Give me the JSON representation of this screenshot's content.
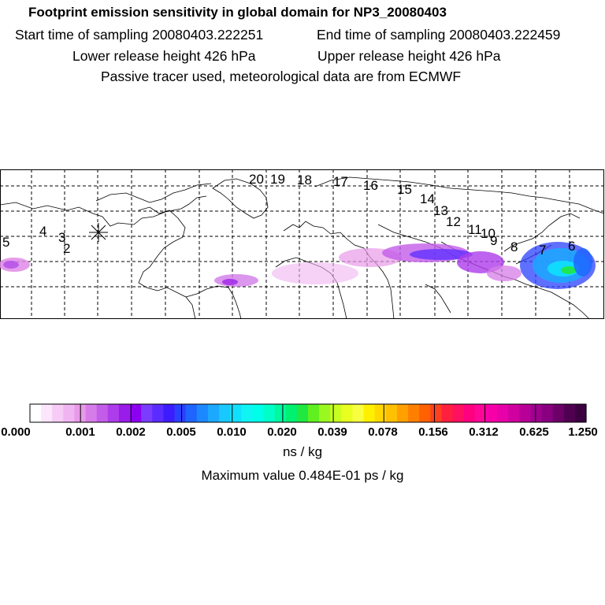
{
  "header": {
    "title": "Footprint emission sensitivity in global domain for NP3_20080403",
    "start": "Start time of sampling 20080403.222251",
    "end": "End time of sampling 20080403.222459",
    "lower": "Lower release height  426 hPa",
    "upper": "Upper release height  426 hPa",
    "note": "Passive tracer used, meteorological data are from ECMWF"
  },
  "map": {
    "track_labels": [
      "20",
      "19",
      "18",
      "17",
      "16",
      "15",
      "14",
      "13",
      "12",
      "11",
      "10",
      "9",
      "8",
      "7",
      "6",
      "5",
      "4",
      "3",
      "2"
    ],
    "release_marker": "star-icon"
  },
  "colorbar": {
    "ticks": [
      "0.000",
      "0.001",
      "0.002",
      "0.005",
      "0.010",
      "0.020",
      "0.039",
      "0.078",
      "0.156",
      "0.312",
      "0.625",
      "1.250"
    ],
    "colors": [
      "#ffffff",
      "#fbe6fb",
      "#f6ccf6",
      "#f0b4f2",
      "#e89ae8",
      "#d67ce8",
      "#c35ce8",
      "#ad3ceb",
      "#9a1ce8",
      "#8c00f0",
      "#7a3cff",
      "#5a2cff",
      "#3c1cff",
      "#2a40ff",
      "#1e64ff",
      "#1c88ff",
      "#1ca8ff",
      "#18c8ff",
      "#10e0ff",
      "#10f4f4",
      "#00ffe8",
      "#00ffc8",
      "#00f8a0",
      "#00f070",
      "#20e840",
      "#60f020",
      "#98f820",
      "#c8ff20",
      "#e8ff20",
      "#f8ff40",
      "#fff000",
      "#ffd800",
      "#ffc000",
      "#ffa000",
      "#ff8000",
      "#ff6000",
      "#ff4020",
      "#ff2040",
      "#ff1060",
      "#ff0080",
      "#ff0898",
      "#f800a8",
      "#e800a8",
      "#d000a0",
      "#b80098",
      "#a00090",
      "#880080",
      "#6c0068",
      "#500050",
      "#3c0040"
    ],
    "units": "ns / kg",
    "max_value": "Maximum value  0.484E-01 ps / kg"
  }
}
